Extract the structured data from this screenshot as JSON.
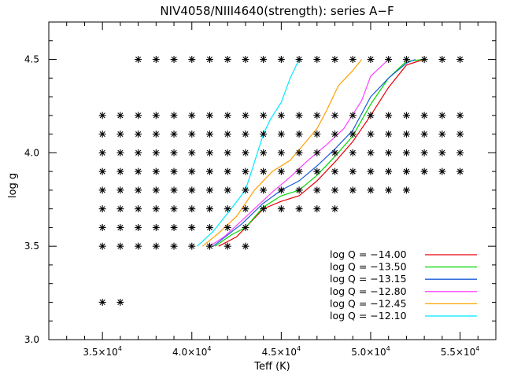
{
  "chart_data": {
    "type": "line",
    "title": "NIV4058/NIII4640(strength): series A−F",
    "xlabel": "Teff (K)",
    "ylabel": "log g",
    "xlim": [
      32000,
      57000
    ],
    "ylim": [
      3.0,
      4.7
    ],
    "x_ticks": [
      {
        "value": 35000,
        "mant": "3.5×10",
        "exp": "4"
      },
      {
        "value": 40000,
        "mant": "4.0×10",
        "exp": "4"
      },
      {
        "value": 45000,
        "mant": "4.5×10",
        "exp": "4"
      },
      {
        "value": 50000,
        "mant": "5.0×10",
        "exp": "4"
      },
      {
        "value": 55000,
        "mant": "5.5×10",
        "exp": "4"
      }
    ],
    "y_ticks": [
      {
        "value": 3.0,
        "label": "3.0"
      },
      {
        "value": 3.5,
        "label": "3.5"
      },
      {
        "value": 4.0,
        "label": "4.0"
      },
      {
        "value": 4.5,
        "label": "4.5"
      }
    ],
    "grid": false,
    "legend_position": "bottom-right",
    "series": [
      {
        "name": "log Q = −14.00",
        "color": "#e8000b",
        "x": [
          41500,
          42500,
          43000,
          44000,
          45000,
          46000,
          47000,
          48000,
          49000,
          50000,
          51000,
          52000,
          53000
        ],
        "y": [
          3.5,
          3.55,
          3.6,
          3.7,
          3.74,
          3.77,
          3.85,
          3.95,
          4.06,
          4.2,
          4.35,
          4.47,
          4.5
        ]
      },
      {
        "name": "log Q = −13.50",
        "color": "#00d800",
        "x": [
          41300,
          42200,
          43000,
          44000,
          45000,
          46000,
          47000,
          48000,
          49000,
          50000,
          51000,
          52000,
          53000
        ],
        "y": [
          3.5,
          3.56,
          3.6,
          3.71,
          3.77,
          3.8,
          3.88,
          3.98,
          4.09,
          4.26,
          4.4,
          4.49,
          4.5
        ]
      },
      {
        "name": "log Q = −13.15",
        "color": "#1a5cd8",
        "x": [
          41200,
          42000,
          42800,
          44000,
          45000,
          46000,
          47000,
          48000,
          49000,
          50000,
          51000,
          52000,
          52500
        ],
        "y": [
          3.5,
          3.56,
          3.62,
          3.73,
          3.8,
          3.85,
          3.93,
          4.02,
          4.12,
          4.3,
          4.4,
          4.48,
          4.5
        ]
      },
      {
        "name": "log Q = −12.80",
        "color": "#ff40ff",
        "x": [
          41000,
          41800,
          42600,
          43500,
          44500,
          45500,
          46500,
          47500,
          48500,
          49500,
          50000,
          51000
        ],
        "y": [
          3.5,
          3.55,
          3.62,
          3.7,
          3.79,
          3.87,
          3.96,
          4.04,
          4.13,
          4.28,
          4.41,
          4.5
        ]
      },
      {
        "name": "log Q = −12.45",
        "color": "#ffa000",
        "x": [
          40600,
          41500,
          42500,
          43500,
          44500,
          45500,
          46300,
          47000,
          47500,
          48200,
          49000,
          49500
        ],
        "y": [
          3.5,
          3.57,
          3.66,
          3.8,
          3.9,
          3.96,
          4.05,
          4.13,
          4.22,
          4.36,
          4.44,
          4.5
        ]
      },
      {
        "name": "log Q = −12.10",
        "color": "#00e8ff",
        "x": [
          40300,
          41200,
          42200,
          43000,
          43500,
          44000,
          44400,
          45000,
          45500,
          46000
        ],
        "y": [
          3.5,
          3.58,
          3.7,
          3.8,
          3.95,
          4.1,
          4.18,
          4.27,
          4.4,
          4.5
        ]
      }
    ],
    "grid_points": [
      {
        "y": 4.5,
        "x": [
          37000,
          38000,
          39000,
          40000,
          41000,
          42000,
          43000,
          44000,
          45000,
          46000,
          47000,
          48000,
          49000,
          50000,
          51000,
          52000,
          53000,
          54000,
          55000
        ]
      },
      {
        "y": 4.2,
        "x": [
          35000,
          36000,
          37000,
          38000,
          39000,
          40000,
          41000,
          42000,
          43000,
          44000,
          45000,
          46000,
          47000,
          48000,
          49000,
          50000,
          51000,
          52000,
          53000,
          54000,
          55000
        ]
      },
      {
        "y": 4.1,
        "x": [
          35000,
          36000,
          37000,
          38000,
          39000,
          40000,
          41000,
          42000,
          43000,
          44000,
          45000,
          46000,
          47000,
          48000,
          49000,
          50000,
          51000,
          52000,
          53000,
          54000,
          55000
        ]
      },
      {
        "y": 4.0,
        "x": [
          35000,
          36000,
          37000,
          38000,
          39000,
          40000,
          41000,
          42000,
          43000,
          44000,
          45000,
          46000,
          47000,
          48000,
          49000,
          50000,
          51000,
          52000,
          53000,
          54000,
          55000
        ]
      },
      {
        "y": 3.9,
        "x": [
          35000,
          36000,
          37000,
          38000,
          39000,
          40000,
          41000,
          42000,
          43000,
          44000,
          45000,
          46000,
          47000,
          48000,
          49000,
          50000,
          51000,
          52000,
          53000,
          54000,
          55000
        ]
      },
      {
        "y": 3.8,
        "x": [
          35000,
          36000,
          37000,
          38000,
          39000,
          40000,
          41000,
          42000,
          43000,
          44000,
          45000,
          46000,
          47000,
          48000,
          49000,
          50000,
          51000,
          52000
        ]
      },
      {
        "y": 3.7,
        "x": [
          35000,
          36000,
          37000,
          38000,
          39000,
          40000,
          41000,
          42000,
          43000,
          44000,
          45000,
          46000,
          47000,
          48000
        ]
      },
      {
        "y": 3.6,
        "x": [
          35000,
          36000,
          37000,
          38000,
          39000,
          40000,
          41000,
          42000,
          43000
        ]
      },
      {
        "y": 3.5,
        "x": [
          35000,
          36000,
          37000,
          38000,
          39000,
          40000,
          41000,
          42000,
          43000
        ]
      },
      {
        "y": 3.2,
        "x": [
          35000,
          36000
        ]
      }
    ],
    "marker": "asterisk"
  }
}
